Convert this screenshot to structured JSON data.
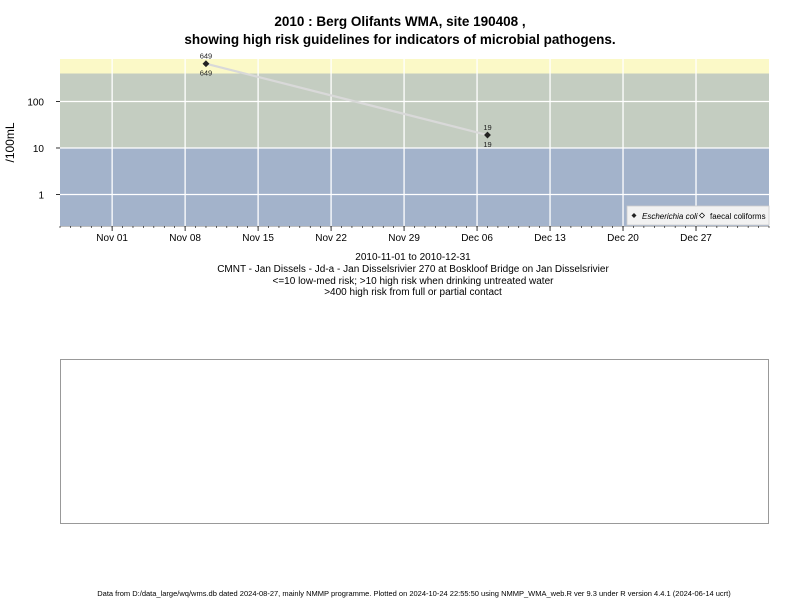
{
  "title_line1": "2010 : Berg Olifants WMA, site 190408 ,",
  "title_line2": "showing high risk guidelines for indicators of microbial pathogens.",
  "caption": {
    "date_range": "2010-11-01 to 2010-12-31",
    "site": "CMNT - Jan Dissels - Jd-a - Jan Disselsrivier 270 at Boskloof Bridge on Jan Disselsrivier",
    "guideline1": "<=10 low-med risk; >10 high risk when drinking untreated water",
    "guideline2": ">400 high risk from full or partial contact"
  },
  "footer": "Data from D:/data_large/wq/wms.db dated 2024-08-27, mainly NMMP programme. Plotted on 2024-10-24 22:55:50 using NMMP_WMA_web.R ver 9.3 under R version 4.4.1 (2024-06-14 ucrt)",
  "colors": {
    "low_band": "#a3b3cb",
    "mid_band": "#c4cdc1",
    "high_band": "#fbf9c7",
    "line": "#d9d9d9",
    "marker": "#222222"
  },
  "chart_data": {
    "type": "line",
    "ylabel": "/100mL",
    "xlabel": "",
    "y_scale": "log",
    "x_range": [
      "2010-10-27",
      "2011-01-03"
    ],
    "y_range": [
      0.21,
      820
    ],
    "x_ticks": [
      {
        "date": "2010-11-01",
        "label": "Nov 01"
      },
      {
        "date": "2010-11-08",
        "label": "Nov 08"
      },
      {
        "date": "2010-11-15",
        "label": "Nov 15"
      },
      {
        "date": "2010-11-22",
        "label": "Nov 22"
      },
      {
        "date": "2010-11-29",
        "label": "Nov 29"
      },
      {
        "date": "2010-12-06",
        "label": "Dec 06"
      },
      {
        "date": "2010-12-13",
        "label": "Dec 13"
      },
      {
        "date": "2010-12-20",
        "label": "Dec 20"
      },
      {
        "date": "2010-12-27",
        "label": "Dec 27"
      }
    ],
    "y_ticks": [
      {
        "value": 1,
        "label": "1"
      },
      {
        "value": 10,
        "label": "10"
      },
      {
        "value": 100,
        "label": "100"
      }
    ],
    "risk_bands": [
      {
        "from": 0.21,
        "to": 10,
        "color": "#a3b3cb"
      },
      {
        "from": 10,
        "to": 400,
        "color": "#c4cdc1"
      },
      {
        "from": 400,
        "to": 820,
        "color": "#fbf9c7"
      }
    ],
    "grid": true,
    "legend_position": "bottom-right",
    "series": [
      {
        "name": "Escherichia coli",
        "marker": "filled-diamond",
        "x": [
          "2010-11-10",
          "2010-12-07"
        ],
        "y": [
          649,
          19
        ],
        "labels": [
          "649",
          "19"
        ],
        "label_position": "above"
      },
      {
        "name": "faecal coliforms",
        "marker": "open-diamond",
        "x": [
          "2010-11-10",
          "2010-12-07"
        ],
        "y": [
          649,
          19
        ],
        "labels": [
          "649",
          "19"
        ],
        "label_position": "below"
      }
    ]
  }
}
